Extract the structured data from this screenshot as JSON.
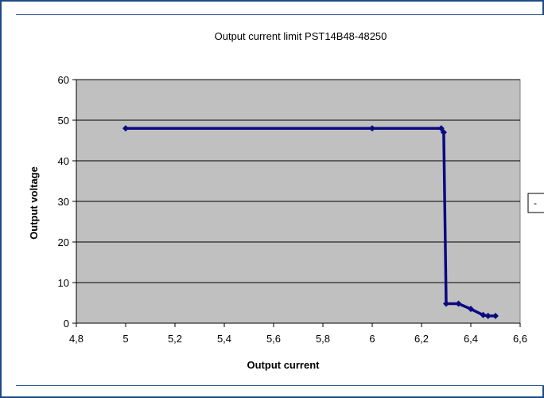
{
  "chart_data": {
    "type": "line",
    "title": "Output current limit PST14B48-48250",
    "xlabel": "Output current",
    "ylabel": "Output voltage",
    "xlim": [
      4.8,
      6.6
    ],
    "ylim": [
      0,
      60
    ],
    "x_ticks": [
      4.8,
      5.0,
      5.2,
      5.4,
      5.6,
      5.8,
      6.0,
      6.2,
      6.4,
      6.6
    ],
    "x_tick_labels": [
      "4,8",
      "5",
      "5,2",
      "5,4",
      "5,6",
      "5,8",
      "6",
      "6,2",
      "6,4",
      "6,6"
    ],
    "y_ticks": [
      0,
      10,
      20,
      30,
      40,
      50,
      60
    ],
    "y_tick_labels": [
      "0",
      "10",
      "20",
      "30",
      "40",
      "50",
      "60"
    ],
    "grid": "horizontal",
    "legend_fragment": "-",
    "series": [
      {
        "x": [
          5.0,
          6.0,
          6.28,
          6.29,
          6.3,
          6.35,
          6.4,
          6.45,
          6.47,
          6.5
        ],
        "y": [
          48.0,
          48.0,
          48.0,
          47.0,
          4.8,
          4.8,
          3.5,
          2.0,
          1.8,
          1.8
        ],
        "color": "#0a0a80"
      }
    ],
    "plot_background": "#c0c0c0",
    "gridline_color": "#000000",
    "frame_color": "#1e4a88"
  }
}
